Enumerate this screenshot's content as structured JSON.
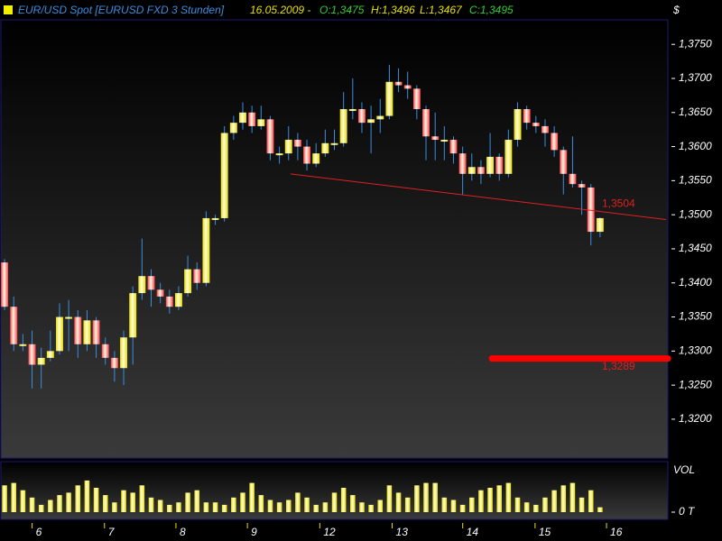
{
  "chart_data": {
    "type": "candlestick",
    "title": "EUR/USD Spot [EURUSD FXD  3 Stunden]",
    "date": "16.05.2009 -",
    "ohlc_text": {
      "open": "O:1,3475",
      "high": "H:1,3496",
      "low": "L:1,3467",
      "close": "C:1,3495"
    },
    "currency": "$",
    "x": [
      0,
      1,
      2,
      3,
      4,
      5,
      6,
      7,
      8,
      9,
      10,
      11,
      12,
      13,
      14,
      15,
      16,
      17,
      18,
      19,
      20,
      21,
      22,
      23,
      24,
      25,
      26,
      27,
      28,
      29,
      30,
      31,
      32,
      33,
      34,
      35,
      36,
      37,
      38,
      39,
      40,
      41,
      42,
      43,
      44,
      45,
      46,
      47,
      48,
      49,
      50,
      51,
      52,
      53,
      54,
      55,
      56,
      57,
      58,
      59,
      60,
      61,
      62,
      63,
      64,
      65
    ],
    "open": [
      1.343,
      1.3365,
      1.331,
      1.331,
      1.328,
      1.329,
      1.33,
      1.335,
      1.335,
      1.331,
      1.3345,
      1.331,
      1.329,
      1.3275,
      1.332,
      1.3385,
      1.341,
      1.339,
      1.338,
      1.3365,
      1.3385,
      1.342,
      1.34,
      1.3495,
      1.3495,
      1.362,
      1.3635,
      1.365,
      1.363,
      1.364,
      1.359,
      1.359,
      1.361,
      1.36,
      1.3575,
      1.359,
      1.3605,
      1.3605,
      1.3655,
      1.3655,
      1.3635,
      1.364,
      1.3645,
      1.3695,
      1.369,
      1.3685,
      1.3655,
      1.3615,
      1.361,
      1.361,
      1.359,
      1.356,
      1.357,
      1.356,
      1.3585,
      1.356,
      1.361,
      1.3655,
      1.3635,
      1.363,
      1.362,
      1.3595,
      1.356,
      1.3545,
      1.354,
      1.3475
    ],
    "high": [
      1.3435,
      1.338,
      1.3325,
      1.333,
      1.3305,
      1.333,
      1.337,
      1.3375,
      1.336,
      1.336,
      1.335,
      1.332,
      1.33,
      1.333,
      1.3395,
      1.3465,
      1.342,
      1.34,
      1.339,
      1.3395,
      1.344,
      1.343,
      1.3505,
      1.35,
      1.363,
      1.3645,
      1.3665,
      1.366,
      1.366,
      1.3645,
      1.36,
      1.363,
      1.362,
      1.361,
      1.3605,
      1.3625,
      1.3625,
      1.368,
      1.37,
      1.3665,
      1.366,
      1.367,
      1.372,
      1.3715,
      1.371,
      1.369,
      1.366,
      1.365,
      1.363,
      1.3615,
      1.36,
      1.359,
      1.358,
      1.362,
      1.359,
      1.3625,
      1.3665,
      1.366,
      1.3645,
      1.364,
      1.363,
      1.36,
      1.3615,
      1.355,
      1.3545,
      1.3496
    ],
    "low": [
      1.336,
      1.33,
      1.33,
      1.3245,
      1.3245,
      1.3285,
      1.3295,
      1.33,
      1.329,
      1.33,
      1.329,
      1.328,
      1.3255,
      1.325,
      1.328,
      1.3375,
      1.3365,
      1.337,
      1.3355,
      1.336,
      1.338,
      1.339,
      1.3395,
      1.3485,
      1.349,
      1.361,
      1.3625,
      1.362,
      1.3625,
      1.358,
      1.3575,
      1.358,
      1.358,
      1.3565,
      1.357,
      1.3585,
      1.3595,
      1.36,
      1.364,
      1.362,
      1.359,
      1.362,
      1.364,
      1.368,
      1.367,
      1.364,
      1.358,
      1.358,
      1.358,
      1.3575,
      1.353,
      1.355,
      1.3545,
      1.3555,
      1.355,
      1.3555,
      1.36,
      1.3625,
      1.362,
      1.36,
      1.3585,
      1.353,
      1.354,
      1.35,
      1.3455,
      1.3467
    ],
    "close": [
      1.3365,
      1.331,
      1.331,
      1.328,
      1.329,
      1.33,
      1.335,
      1.335,
      1.331,
      1.3345,
      1.331,
      1.329,
      1.3275,
      1.332,
      1.3385,
      1.341,
      1.339,
      1.338,
      1.3365,
      1.3385,
      1.342,
      1.34,
      1.3495,
      1.3495,
      1.362,
      1.3635,
      1.365,
      1.363,
      1.364,
      1.359,
      1.359,
      1.361,
      1.36,
      1.3575,
      1.359,
      1.3605,
      1.3605,
      1.3655,
      1.3655,
      1.3635,
      1.364,
      1.3645,
      1.3695,
      1.369,
      1.3685,
      1.3655,
      1.3615,
      1.361,
      1.361,
      1.359,
      1.356,
      1.357,
      1.356,
      1.3585,
      1.356,
      1.361,
      1.3655,
      1.3635,
      1.363,
      1.362,
      1.3595,
      1.356,
      1.3545,
      1.354,
      1.3475,
      1.3495
    ],
    "up_color": "#e8e000",
    "down_color": "#ff4050",
    "wick_color": "#3a8ee0",
    "xlim": [
      -0.5,
      72.4
    ],
    "xticks": [
      {
        "value": 3.4,
        "label": "6"
      },
      {
        "value": 11.3,
        "label": "7"
      },
      {
        "value": 19.1,
        "label": "8"
      },
      {
        "value": 26.9,
        "label": "9"
      },
      {
        "value": 34.8,
        "label": "12"
      },
      {
        "value": 42.7,
        "label": "13"
      },
      {
        "value": 50.4,
        "label": "14"
      },
      {
        "value": 58.3,
        "label": "15"
      },
      {
        "value": 66.1,
        "label": "16"
      }
    ],
    "ylim": [
      1.3143,
      1.3786
    ],
    "yticks": [
      {
        "value": 1.32,
        "label": "1,3200"
      },
      {
        "value": 1.325,
        "label": "1,3250"
      },
      {
        "value": 1.33,
        "label": "1,3300"
      },
      {
        "value": 1.335,
        "label": "1,3350"
      },
      {
        "value": 1.34,
        "label": "1,3400"
      },
      {
        "value": 1.345,
        "label": "1,3450"
      },
      {
        "value": 1.35,
        "label": "1,3500"
      },
      {
        "value": 1.355,
        "label": "1,3550"
      },
      {
        "value": 1.36,
        "label": "1,3600"
      },
      {
        "value": 1.365,
        "label": "1,3650"
      },
      {
        "value": 1.37,
        "label": "1,3700"
      },
      {
        "value": 1.375,
        "label": "1,3750"
      }
    ],
    "trendline": {
      "x": [
        31.2,
        72.2
      ],
      "y": [
        1.356,
        1.3493
      ],
      "color": "#e02020",
      "label": {
        "value": 1.3504,
        "label": "1,3504"
      }
    },
    "level": {
      "x": [
        53.2,
        72.4
      ],
      "value": 1.3289,
      "label": "1,3289",
      "color": "#ff0000"
    },
    "volume": {
      "label": "VOL",
      "color": "#e8e000",
      "ylim": [
        0,
        100
      ],
      "yticks": [
        {
          "value": 0,
          "label": "0 T"
        }
      ],
      "values": [
        55,
        60,
        45,
        30,
        15,
        25,
        35,
        40,
        55,
        65,
        50,
        35,
        20,
        45,
        40,
        55,
        30,
        25,
        15,
        20,
        40,
        45,
        20,
        20,
        15,
        30,
        40,
        60,
        35,
        25,
        20,
        25,
        40,
        30,
        15,
        20,
        40,
        50,
        35,
        20,
        15,
        25,
        55,
        40,
        30,
        55,
        60,
        60,
        30,
        25,
        15,
        30,
        45,
        50,
        55,
        60,
        30,
        20,
        15,
        30,
        45,
        55,
        60,
        30,
        45,
        10
      ]
    }
  }
}
